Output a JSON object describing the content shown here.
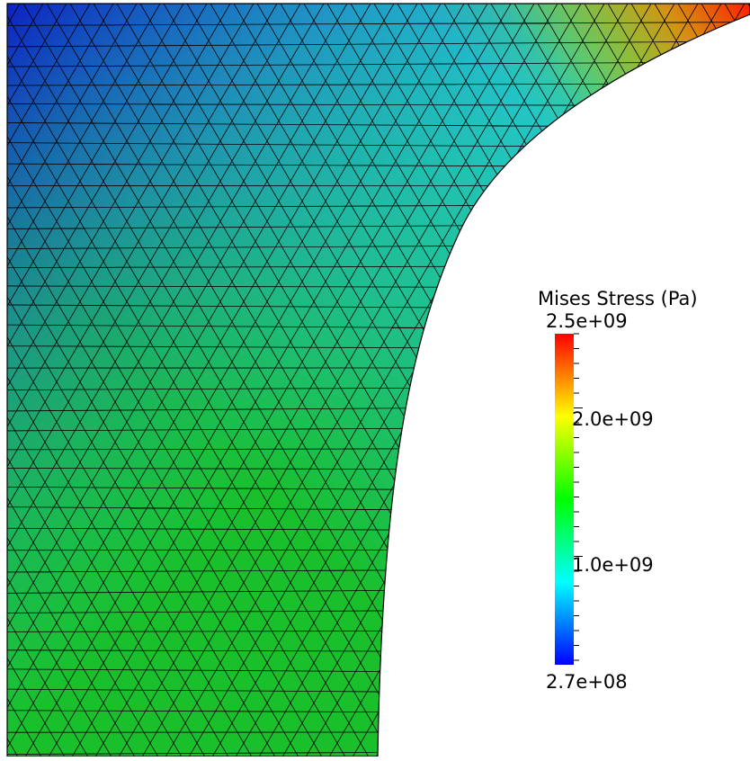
{
  "legend": {
    "title": "Mises Stress (Pa)",
    "max_label": "2.5e+09",
    "min_label": "2.7e+08",
    "labels": [
      "2.0e+09",
      "1.0e+09"
    ],
    "range": [
      270000000,
      2500000000
    ],
    "label_values": [
      2000000000,
      1000000000
    ],
    "colormap": [
      "#0000ff",
      "#00ffff",
      "#00ff00",
      "#ffff00",
      "#ff0000"
    ]
  },
  "field": {
    "colors": {
      "top_left": "#0a14c8",
      "mid_blue": "#1f6fd6",
      "cyan": "#22c9c4",
      "teal": "#1fbf86",
      "green": "#19c02c",
      "bright_green": "#00d40a",
      "yellow_green": "#9bd80a",
      "orange": "#e08a0c",
      "red": "#ff1a00",
      "mesh_line": "#000000"
    }
  }
}
